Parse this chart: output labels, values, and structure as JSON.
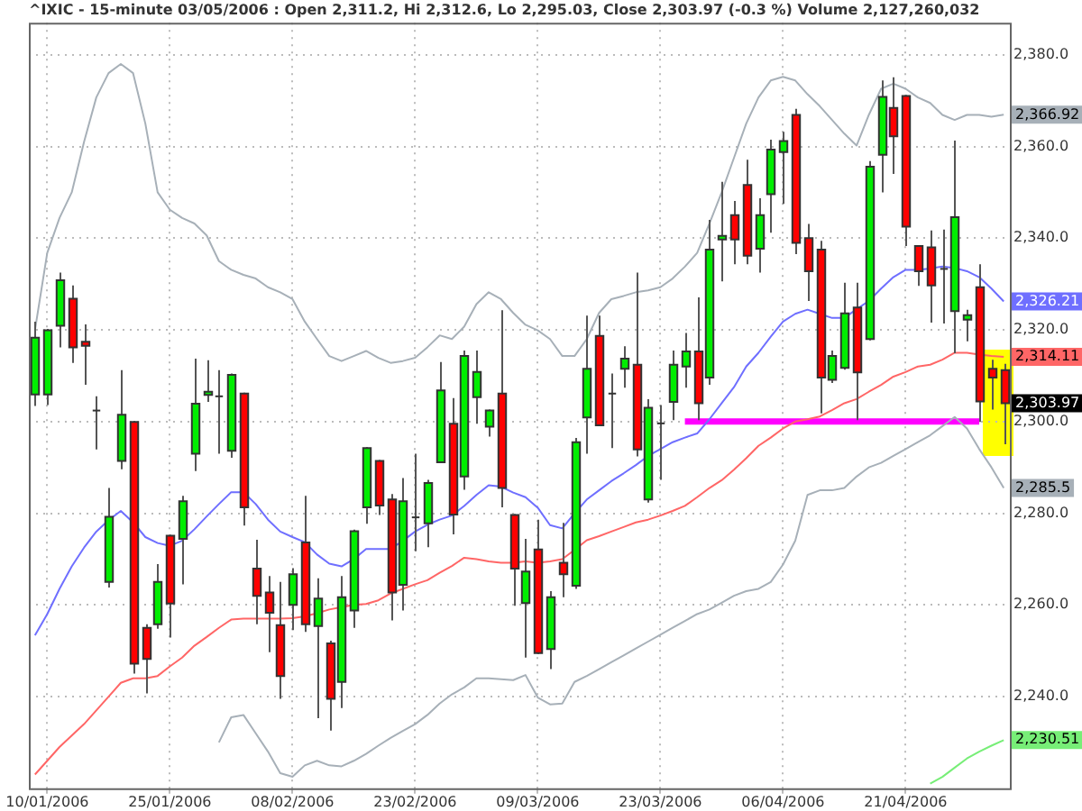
{
  "chart_data": {
    "type": "candlestick",
    "title": "^IXIC - 15-minute 03/05/2006 : Open 2,311.2, Hi 2,312.6, Lo 2,295.03, Close 2,303.97 (-0.3 %) Volume 2,127,260,032",
    "categories": [
      null,
      "10/01/2006",
      null,
      null,
      null,
      null,
      null,
      null,
      null,
      null,
      null,
      "25/01/2006",
      null,
      null,
      null,
      null,
      null,
      null,
      null,
      null,
      null,
      "08/02/2006",
      null,
      null,
      null,
      null,
      null,
      null,
      null,
      null,
      null,
      "23/02/2006",
      null,
      null,
      null,
      null,
      null,
      null,
      null,
      null,
      null,
      "09/03/2006",
      null,
      null,
      null,
      null,
      null,
      null,
      null,
      null,
      null,
      "23/03/2006",
      null,
      null,
      null,
      null,
      null,
      null,
      null,
      null,
      null,
      "06/04/2006",
      null,
      null,
      null,
      null,
      null,
      null,
      null,
      null,
      null,
      "21/04/2006",
      null,
      null,
      null,
      null,
      null,
      null,
      null,
      null
    ],
    "ohlc": [
      [
        2305.9,
        2321.8,
        2303.4,
        2318.3
      ],
      [
        2305.9,
        2320.2,
        2303.6,
        2319.9
      ],
      [
        2320.9,
        2332.5,
        2316.2,
        2330.8
      ],
      [
        2326.8,
        2329.7,
        2312.8,
        2316.2
      ],
      [
        2317.4,
        2321.2,
        2308.0,
        2316.5
      ],
      [
        2302.4,
        2305.5,
        2293.9,
        2302.4
      ],
      [
        2265.0,
        2285.5,
        2263.8,
        2279.2
      ],
      [
        2291.4,
        2311.2,
        2289.6,
        2301.5
      ],
      [
        2299.9,
        2300.1,
        2245.0,
        2247.2
      ],
      [
        2255.0,
        2255.8,
        2240.7,
        2248.2
      ],
      [
        2255.8,
        2268.9,
        2254.8,
        2265.0
      ],
      [
        2275.1,
        2275.3,
        2252.9,
        2260.3
      ],
      [
        2274.4,
        2283.8,
        2264.5,
        2282.6
      ],
      [
        2293.0,
        2313.7,
        2289.2,
        2303.9
      ],
      [
        2305.8,
        2313.4,
        2304.3,
        2306.5
      ],
      [
        2305.5,
        2311.2,
        2293.0,
        2305.5
      ],
      [
        2293.6,
        2310.5,
        2292.1,
        2310.2
      ],
      [
        2306.1,
        2306.3,
        2277.3,
        2281.3
      ],
      [
        2267.9,
        2274.2,
        2255.8,
        2262.0
      ],
      [
        2262.7,
        2266.3,
        2249.7,
        2258.3
      ],
      [
        2255.6,
        2265.0,
        2239.5,
        2244.5
      ],
      [
        2260.0,
        2268.0,
        2254.5,
        2266.7
      ],
      [
        2273.6,
        2283.8,
        2254.1,
        2255.8
      ],
      [
        2255.4,
        2265.8,
        2235.3,
        2261.4
      ],
      [
        2251.6,
        2252.2,
        2232.6,
        2239.5
      ],
      [
        2243.2,
        2266.3,
        2237.5,
        2261.7
      ],
      [
        2258.8,
        2276.4,
        2255.0,
        2276.1
      ],
      [
        2281.3,
        2294.4,
        2277.7,
        2294.2
      ],
      [
        2291.4,
        2291.6,
        2279.6,
        2281.7
      ],
      [
        2283.0,
        2284.2,
        2256.6,
        2262.7
      ],
      [
        2264.4,
        2287.7,
        2258.8,
        2282.6
      ],
      [
        2279.1,
        2293.0,
        2271.7,
        2279.1
      ],
      [
        2277.8,
        2287.3,
        2272.6,
        2286.6
      ],
      [
        2291.1,
        2313.0,
        2291.1,
        2306.8
      ],
      [
        2299.5,
        2305.1,
        2275.4,
        2279.7
      ],
      [
        2288.0,
        2315.5,
        2285.1,
        2314.3
      ],
      [
        2305.3,
        2315.5,
        2299.5,
        2310.8
      ],
      [
        2298.9,
        2302.6,
        2296.7,
        2302.4
      ],
      [
        2306.1,
        2324.3,
        2281.3,
        2285.5
      ],
      [
        2279.6,
        2279.8,
        2259.8,
        2267.9
      ],
      [
        2260.4,
        2274.4,
        2248.5,
        2267.3
      ],
      [
        2272.1,
        2278.6,
        2249.3,
        2249.5
      ],
      [
        2250.4,
        2263.0,
        2246.0,
        2261.7
      ],
      [
        2269.2,
        2277.9,
        2261.7,
        2266.7
      ],
      [
        2264.2,
        2296.4,
        2263.5,
        2295.5
      ],
      [
        2300.9,
        2323.1,
        2293.0,
        2311.5
      ],
      [
        2318.7,
        2323.1,
        2299.2,
        2299.2
      ],
      [
        2306.1,
        2310.5,
        2294.2,
        2306.1
      ],
      [
        2311.5,
        2316.4,
        2307.4,
        2313.7
      ],
      [
        2312.4,
        2332.5,
        2292.4,
        2293.9
      ],
      [
        2283.0,
        2304.9,
        2282.3,
        2303.0
      ],
      [
        2299.6,
        2303.6,
        2287.3,
        2299.6
      ],
      [
        2304.3,
        2315.5,
        2300.3,
        2312.4
      ],
      [
        2312.0,
        2319.3,
        2307.4,
        2315.3
      ],
      [
        2315.3,
        2327.1,
        2300.3,
        2304.0
      ],
      [
        2309.6,
        2344.0,
        2308.0,
        2337.5
      ],
      [
        2339.7,
        2352.3,
        2330.6,
        2340.5
      ],
      [
        2345.0,
        2348.1,
        2334.3,
        2339.7
      ],
      [
        2351.6,
        2357.1,
        2334.3,
        2336.2
      ],
      [
        2337.7,
        2348.7,
        2332.5,
        2345.0
      ],
      [
        2349.6,
        2361.5,
        2341.2,
        2359.3
      ],
      [
        2358.8,
        2363.2,
        2347.5,
        2361.2
      ],
      [
        2366.9,
        2368.2,
        2336.5,
        2339.0
      ],
      [
        2340.0,
        2343.1,
        2326.3,
        2332.8
      ],
      [
        2337.5,
        2339.4,
        2301.8,
        2309.6
      ],
      [
        2309.1,
        2315.5,
        2308.4,
        2314.3
      ],
      [
        2311.7,
        2330.3,
        2311.3,
        2323.6
      ],
      [
        2324.9,
        2330.3,
        2300.3,
        2310.7
      ],
      [
        2318.0,
        2356.8,
        2317.7,
        2355.6
      ],
      [
        2358.2,
        2374.4,
        2350.0,
        2370.8
      ],
      [
        2368.4,
        2375.1,
        2354.0,
        2362.2
      ],
      [
        2371.0,
        2371.2,
        2338.3,
        2342.5
      ],
      [
        2338.3,
        2338.5,
        2329.6,
        2332.8
      ],
      [
        2338.0,
        2341.7,
        2321.6,
        2329.7
      ],
      [
        2333.3,
        2341.9,
        2321.4,
        2333.3
      ],
      [
        2324.1,
        2361.3,
        2314.9,
        2344.6
      ],
      [
        2322.2,
        2324.4,
        2317.5,
        2323.2
      ],
      [
        2329.3,
        2334.3,
        2299.9,
        2304.4
      ],
      [
        2311.5,
        2313.5,
        2302.6,
        2309.6
      ],
      [
        2311.2,
        2312.6,
        2295.03,
        2303.97
      ]
    ],
    "series": [
      {
        "type": "line",
        "color": "#a7b0b8",
        "values": [
          2320,
          2336.8,
          2344.4,
          2350,
          2361,
          2370.7,
          2376,
          2378,
          2376,
          2365,
          2350,
          2346.2,
          2344.4,
          2343.2,
          2340.6,
          2335,
          2333.1,
          2332,
          2331.2,
          2329.3,
          2328.2,
          2326.7,
          2321.8,
          2318,
          2314.3,
          2313.2,
          2314.3,
          2315.4,
          2313.9,
          2312.8,
          2313.2,
          2313.9,
          2316.2,
          2318.8,
          2318,
          2320.7,
          2325.6,
          2328.2,
          2326.7,
          2323.7,
          2321.1,
          2319.9,
          2318,
          2314.3,
          2314.3,
          2318,
          2323.7,
          2326.7,
          2327.4,
          2328.2,
          2328.6,
          2329.3,
          2331.2,
          2333.8,
          2336.8,
          2343.2,
          2350,
          2357.5,
          2365,
          2370.7,
          2374.4,
          2375.2,
          2374.4,
          2371.4,
          2368.8,
          2365.8,
          2362.8,
          2360.2,
          2366.9,
          2372.6,
          2373.7,
          2372.6,
          2370.7,
          2369.5,
          2366.9,
          2365.8,
          2366.9,
          2366.9,
          2366.5,
          2366.92
        ],
        "value_labels": [
          null,
          null,
          null,
          null,
          null,
          null,
          null,
          null,
          null,
          null,
          null,
          null,
          null,
          null,
          null,
          null,
          null,
          null,
          null,
          null,
          null,
          null,
          null,
          null,
          null,
          null,
          null,
          null,
          null,
          null,
          null,
          null,
          null,
          null,
          null,
          null,
          null,
          null,
          null,
          null,
          null,
          null,
          null,
          null,
          null,
          null,
          null,
          null,
          null,
          null,
          null,
          null,
          null,
          null,
          null,
          null,
          null,
          null,
          null,
          null,
          null,
          null,
          null,
          null,
          null,
          null,
          null,
          null,
          null,
          null,
          null,
          null,
          null,
          null,
          null,
          null,
          null,
          null,
          null,
          "2,366.92"
        ]
      },
      {
        "type": "line",
        "color": "#6f6fff",
        "values": [
          2253.4,
          2258,
          2263.5,
          2268.4,
          2272.5,
          2276,
          2278.5,
          2280.5,
          2278,
          2274.8,
          2273.5,
          2272.9,
          2274,
          2276.5,
          2279.3,
          2282,
          2284.6,
          2284.6,
          2282,
          2278.6,
          2276,
          2274.8,
          2273.7,
          2271,
          2269,
          2268.4,
          2270,
          2272.2,
          2272.2,
          2272.2,
          2274,
          2276,
          2277.5,
          2278.6,
          2279.5,
          2281.6,
          2284,
          2286.1,
          2285.8,
          2284.5,
          2283.5,
          2281.2,
          2277.4,
          2276.7,
          2280,
          2283,
          2285,
          2287,
          2288.7,
          2290.5,
          2292.5,
          2294,
          2295.5,
          2296.5,
          2297.4,
          2300.5,
          2304,
          2307.5,
          2312,
          2315,
          2318.5,
          2321.8,
          2323.5,
          2324.4,
          2323.5,
          2322.6,
          2322.6,
          2324.5,
          2326.3,
          2329,
          2331.5,
          2333.1,
          2333.1,
          2333.4,
          2333.8,
          2333.5,
          2332.8,
          2331.5,
          2329,
          2326.21
        ],
        "value_labels": [
          null,
          null,
          null,
          null,
          null,
          null,
          null,
          null,
          null,
          null,
          null,
          null,
          null,
          null,
          null,
          null,
          null,
          null,
          null,
          null,
          null,
          null,
          null,
          null,
          null,
          null,
          null,
          null,
          null,
          null,
          null,
          null,
          null,
          null,
          null,
          null,
          null,
          null,
          null,
          null,
          null,
          null,
          null,
          null,
          null,
          null,
          null,
          null,
          null,
          null,
          null,
          null,
          null,
          null,
          null,
          null,
          null,
          null,
          null,
          null,
          null,
          null,
          null,
          null,
          null,
          null,
          null,
          null,
          null,
          null,
          null,
          null,
          null,
          null,
          null,
          null,
          null,
          null,
          null,
          "2,326.21"
        ]
      },
      {
        "type": "line",
        "color": "#ff6666",
        "values": [
          2223,
          2226,
          2229,
          2231.5,
          2234,
          2237,
          2240,
          2243,
          2244,
          2244,
          2244.5,
          2246.6,
          2248.5,
          2251.1,
          2253,
          2255,
          2256.8,
          2257,
          2257,
          2257,
          2257,
          2257.1,
          2257.5,
          2258.2,
          2259,
          2259.5,
          2260,
          2260.2,
          2261,
          2262.5,
          2263.5,
          2264.5,
          2265.4,
          2267,
          2268.5,
          2270.3,
          2270,
          2269.5,
          2269.2,
          2269.2,
          2269.5,
          2269.2,
          2269.5,
          2270,
          2272,
          2274.1,
          2275,
          2276,
          2277,
          2278,
          2278.6,
          2279.5,
          2280.5,
          2281.6,
          2283.5,
          2285.5,
          2287.2,
          2289.5,
          2292,
          2294.7,
          2296.5,
          2298.5,
          2300,
          2300.5,
          2301.1,
          2302.5,
          2304,
          2304.9,
          2306.5,
          2308,
          2309.8,
          2310.8,
          2312,
          2312.4,
          2313.5,
          2315,
          2315,
          2314.6,
          2314.3,
          2314.11
        ],
        "value_labels": [
          null,
          null,
          null,
          null,
          null,
          null,
          null,
          null,
          null,
          null,
          null,
          null,
          null,
          null,
          null,
          null,
          null,
          null,
          null,
          null,
          null,
          null,
          null,
          null,
          null,
          null,
          null,
          null,
          null,
          null,
          null,
          null,
          null,
          null,
          null,
          null,
          null,
          null,
          null,
          null,
          null,
          null,
          null,
          null,
          null,
          null,
          null,
          null,
          null,
          null,
          null,
          null,
          null,
          null,
          null,
          null,
          null,
          null,
          null,
          null,
          null,
          null,
          null,
          null,
          null,
          null,
          null,
          null,
          null,
          null,
          null,
          null,
          null,
          null,
          null,
          null,
          null,
          null,
          null,
          "2,314.11"
        ]
      },
      {
        "type": "line",
        "color": "#a7b0b8",
        "values": [
          null,
          null,
          null,
          null,
          null,
          null,
          null,
          null,
          null,
          null,
          null,
          null,
          null,
          null,
          null,
          2230,
          2235.5,
          2236,
          2232,
          2228,
          2223.3,
          2222.5,
          2225,
          2226,
          2225,
          2224.8,
          2226,
          2227.5,
          2229.3,
          2231,
          2232.5,
          2234,
          2236,
          2238.5,
          2240.5,
          2242,
          2244,
          2244,
          2243.8,
          2243.6,
          2244.7,
          2239.8,
          2238.3,
          2238.5,
          2243.2,
          2244.5,
          2246,
          2247.5,
          2249,
          2250.5,
          2252,
          2253.5,
          2255,
          2256.5,
          2258,
          2259,
          2260.5,
          2262,
          2263,
          2263.5,
          2265,
          2268.8,
          2274,
          2284,
          2285,
          2285,
          2285.5,
          2288,
          2290,
          2291,
          2292.5,
          2294,
          2295.5,
          2297,
          2299,
          2301,
          2298.5,
          2294,
          2290,
          2285.5
        ],
        "value_labels": [
          null,
          null,
          null,
          null,
          null,
          null,
          null,
          null,
          null,
          null,
          null,
          null,
          null,
          null,
          null,
          null,
          null,
          null,
          null,
          null,
          null,
          null,
          null,
          null,
          null,
          null,
          null,
          null,
          null,
          null,
          null,
          null,
          null,
          null,
          null,
          null,
          null,
          null,
          null,
          null,
          null,
          null,
          null,
          null,
          null,
          null,
          null,
          null,
          null,
          null,
          null,
          null,
          null,
          null,
          null,
          null,
          null,
          null,
          null,
          null,
          null,
          null,
          null,
          null,
          null,
          null,
          null,
          null,
          null,
          null,
          null,
          null,
          null,
          null,
          null,
          null,
          null,
          null,
          null,
          "2,285.5"
        ]
      },
      {
        "type": "line",
        "color": "#77ee77",
        "values": [
          null,
          null,
          null,
          null,
          null,
          null,
          null,
          null,
          null,
          null,
          null,
          null,
          null,
          null,
          null,
          null,
          null,
          null,
          null,
          null,
          null,
          null,
          null,
          null,
          null,
          null,
          null,
          null,
          null,
          null,
          null,
          null,
          null,
          null,
          null,
          null,
          null,
          null,
          null,
          null,
          null,
          null,
          null,
          null,
          null,
          null,
          null,
          null,
          null,
          null,
          null,
          null,
          null,
          null,
          null,
          null,
          null,
          null,
          null,
          null,
          null,
          null,
          null,
          null,
          null,
          null,
          null,
          null,
          null,
          null,
          null,
          null,
          null,
          2221,
          2222.5,
          2224.5,
          2226.5,
          2228,
          2229.3,
          2230.51
        ],
        "value_labels": [
          null,
          null,
          null,
          null,
          null,
          null,
          null,
          null,
          null,
          null,
          null,
          null,
          null,
          null,
          null,
          null,
          null,
          null,
          null,
          null,
          null,
          null,
          null,
          null,
          null,
          null,
          null,
          null,
          null,
          null,
          null,
          null,
          null,
          null,
          null,
          null,
          null,
          null,
          null,
          null,
          null,
          null,
          null,
          null,
          null,
          null,
          null,
          null,
          null,
          null,
          null,
          null,
          null,
          null,
          null,
          null,
          null,
          null,
          null,
          null,
          null,
          null,
          null,
          null,
          null,
          null,
          null,
          null,
          null,
          null,
          null,
          null,
          null,
          null,
          null,
          null,
          null,
          null,
          null,
          "2,230.51"
        ]
      },
      {
        "type": "line",
        "color": "#ff00ff",
        "values": [
          null,
          null,
          null,
          null,
          null,
          null,
          null,
          null,
          null,
          null,
          null,
          null,
          null,
          null,
          null,
          null,
          null,
          null,
          null,
          null,
          null,
          null,
          null,
          null,
          null,
          null,
          null,
          null,
          null,
          null,
          null,
          null,
          null,
          null,
          null,
          null,
          null,
          null,
          null,
          null,
          null,
          null,
          null,
          null,
          null,
          null,
          null,
          null,
          null,
          null,
          null,
          null,
          null,
          2300,
          2300,
          2300,
          2300,
          2300,
          2300,
          2300,
          2300,
          2300,
          2300,
          2300,
          2300,
          2300,
          2300,
          2300,
          2300,
          2300,
          2300,
          2300,
          2300,
          2300,
          2300,
          2300,
          2300,
          2300,
          null,
          null
        ]
      }
    ],
    "ylim": [
      2220,
      2387
    ],
    "yticks": [
      {
        "value": 2240,
        "label": "2,240.0"
      },
      {
        "value": 2260,
        "label": "2,260.0"
      },
      {
        "value": 2280,
        "label": "2,280.0"
      },
      {
        "value": 2300,
        "label": "2,300.0"
      },
      {
        "value": 2320,
        "label": "2,320.0"
      },
      {
        "value": 2340,
        "label": "2,340.0"
      },
      {
        "value": 2360,
        "label": "2,360.0"
      },
      {
        "value": 2380,
        "label": "2,380.0"
      }
    ],
    "grid": true,
    "legend": false,
    "annotations": [
      "2,303.97"
    ]
  }
}
